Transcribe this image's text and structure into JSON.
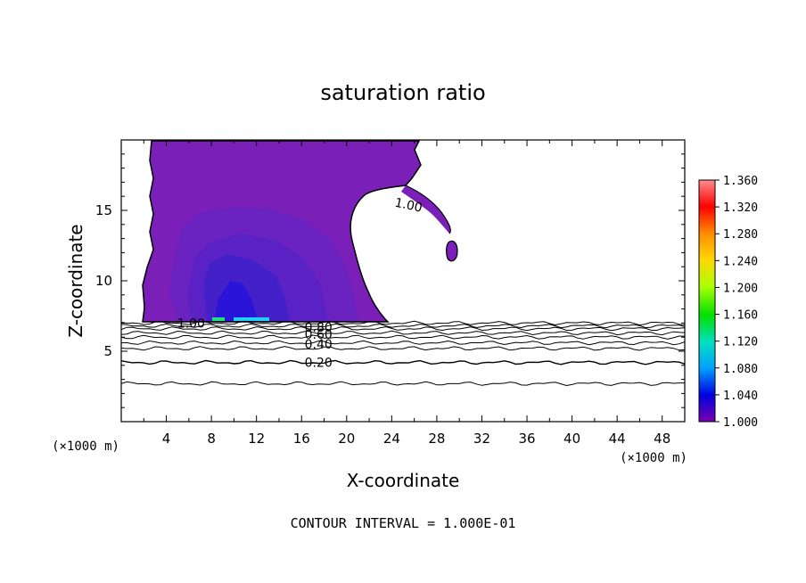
{
  "chart_data": {
    "type": "contour",
    "title": "saturation ratio",
    "xlabel": "X-coordinate",
    "ylabel": "Z-coordinate",
    "x_unit": "(×1000 m)",
    "y_unit": "(×1000 m)",
    "xlim": [
      0,
      50
    ],
    "ylim": [
      0,
      20
    ],
    "x_ticks": [
      4,
      8,
      12,
      16,
      20,
      24,
      28,
      32,
      36,
      40,
      44,
      48
    ],
    "y_ticks": [
      5,
      10,
      15
    ],
    "contour_interval_text": "CONTOUR INTERVAL = 1.000E-01",
    "contour_labels": [
      {
        "text": "1.00",
        "x": 25.5,
        "y": 15.4
      },
      {
        "text": "1.00",
        "x": 6.2,
        "y": 7.0
      },
      {
        "text": "0.80",
        "x": 17.5,
        "y": 6.7
      },
      {
        "text": "0.60",
        "x": 17.5,
        "y": 6.2
      },
      {
        "text": "0.40",
        "x": 17.5,
        "y": 5.5
      },
      {
        "text": "0.20",
        "x": 17.5,
        "y": 4.2
      }
    ],
    "contour_levels_z": [
      2.7,
      4.2,
      5.2,
      5.6,
      6.0,
      6.3,
      6.6,
      6.8,
      7.0
    ],
    "colorbar": {
      "min": 1.0,
      "max": 1.36,
      "ticks": [
        "1.360",
        "1.320",
        "1.280",
        "1.240",
        "1.200",
        "1.160",
        "1.120",
        "1.080",
        "1.040",
        "1.000"
      ],
      "colors": [
        "#ff8c8c",
        "#ff0000",
        "#ff8c00",
        "#ffd700",
        "#aaff00",
        "#00e000",
        "#00e0c0",
        "#00a0ff",
        "#0000e0",
        "#7b00b0"
      ]
    },
    "fill_colors": {
      "outer": "#7a1fb8",
      "mid": "#6a22c0",
      "inner": "#5020c0",
      "core": "#3a1ad0",
      "center": "#2010e0",
      "hot_green": "#20e080",
      "hot_cyan": "#20d0ff"
    }
  }
}
